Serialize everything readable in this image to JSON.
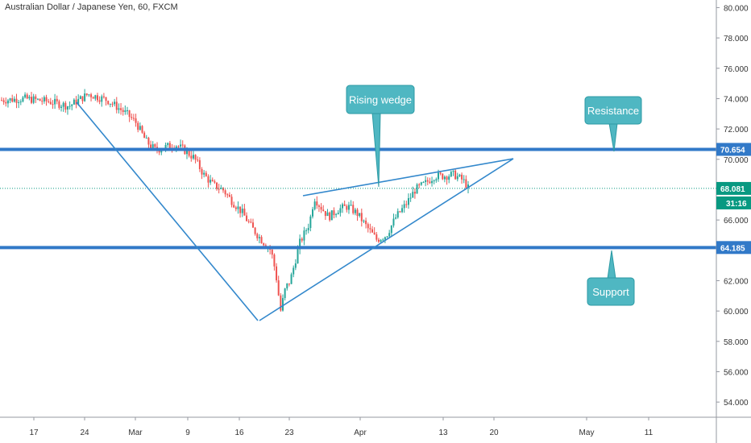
{
  "title": "Australian Dollar / Japanese Yen, 60, FXCM",
  "colors": {
    "up": "#26a69a",
    "down": "#ef5350",
    "level": "#2962ff",
    "level_line": "#3179c8",
    "trend": "#3388cc",
    "callout_fill": "#4fb7c2",
    "callout_stroke": "#2c9aa4",
    "current": "#089981"
  },
  "chart_data": {
    "type": "candlestick",
    "symbol": "Australian Dollar / Japanese Yen",
    "interval": "60",
    "source": "FXCM",
    "ylim": [
      53,
      80.5
    ],
    "x_ticks": [
      "17",
      "24",
      "Mar",
      "9",
      "16",
      "23",
      "Apr",
      "13",
      "20",
      "May",
      "11"
    ],
    "y_ticks": [
      "54.000",
      "56.000",
      "58.000",
      "60.000",
      "62.000",
      "64.000",
      "66.000",
      "68.000",
      "70.000",
      "72.000",
      "74.000",
      "76.000",
      "78.000",
      "80.000"
    ],
    "price_path": [
      [
        0,
        73.9
      ],
      [
        5,
        74.0
      ],
      [
        10,
        73.8
      ],
      [
        14,
        73.5
      ],
      [
        18,
        74.3
      ],
      [
        22,
        73.9
      ],
      [
        26,
        73.0
      ],
      [
        28,
        72.4
      ],
      [
        30,
        71.2
      ],
      [
        32,
        70.6
      ],
      [
        34,
        70.8
      ],
      [
        36,
        71.0
      ],
      [
        38,
        70.6
      ],
      [
        40,
        70.1
      ],
      [
        42,
        69.0
      ],
      [
        44,
        68.3
      ],
      [
        46,
        68.0
      ],
      [
        48,
        67.2
      ],
      [
        50,
        66.5
      ],
      [
        52,
        65.5
      ],
      [
        54,
        64.7
      ],
      [
        56,
        64.0
      ],
      [
        57,
        62.5
      ],
      [
        58,
        60.0
      ],
      [
        59,
        61.5
      ],
      [
        60,
        62.0
      ],
      [
        62,
        64.5
      ],
      [
        64,
        65.8
      ],
      [
        65,
        67.5
      ],
      [
        66,
        67.0
      ],
      [
        68,
        66.2
      ],
      [
        70,
        66.7
      ],
      [
        72,
        66.9
      ],
      [
        74,
        66.4
      ],
      [
        76,
        65.5
      ],
      [
        78,
        64.7
      ],
      [
        80,
        65.0
      ],
      [
        82,
        66.2
      ],
      [
        84,
        67.0
      ],
      [
        86,
        68.0
      ],
      [
        88,
        68.4
      ],
      [
        90,
        68.9
      ],
      [
        92,
        68.9
      ],
      [
        94,
        69.0
      ],
      [
        96,
        68.6
      ],
      [
        97,
        68.1
      ]
    ],
    "levels": [
      {
        "name": "Resistance",
        "value": 70.654,
        "label": "70.654"
      },
      {
        "name": "Support",
        "value": 64.185,
        "label": "64.185"
      }
    ],
    "current_price": {
      "value": 68.081,
      "label": "68.081",
      "countdown": "31:16"
    },
    "pattern": "Rising wedge",
    "annotations": [
      "Rising wedge",
      "Resistance",
      "Support"
    ]
  }
}
